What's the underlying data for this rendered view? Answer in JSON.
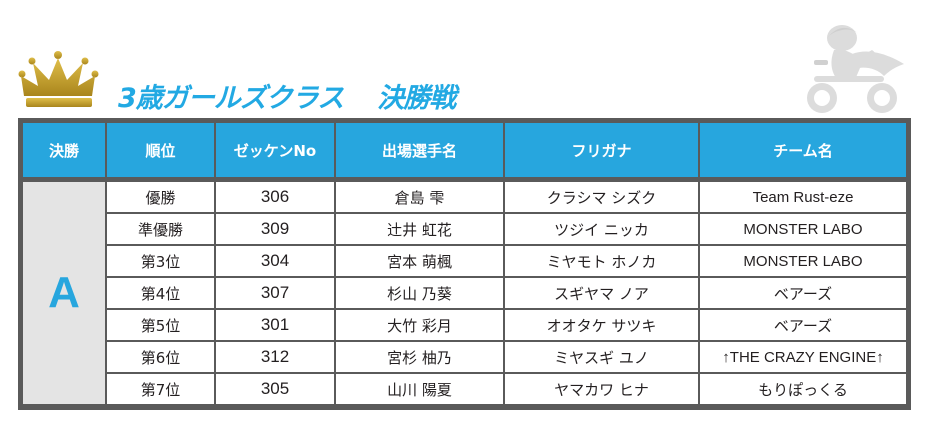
{
  "title": {
    "class_name": "3歳ガールズクラス",
    "round": "決勝戦"
  },
  "colors": {
    "accent": "#27a6de",
    "crown": "#c9a227",
    "frame": "#5a5a5a",
    "group_bg": "#e4e4e4"
  },
  "table": {
    "headers": [
      "決勝",
      "順位",
      "ゼッケンNo",
      "出場選手名",
      "フリガナ",
      "チーム名"
    ],
    "group": "A",
    "rows": [
      {
        "rank": "優勝",
        "bib": "306",
        "name": "倉島 雫",
        "kana": "クラシマ シズク",
        "team": "Team Rust-eze"
      },
      {
        "rank": "準優勝",
        "bib": "309",
        "name": "辻井 虹花",
        "kana": "ツジイ ニッカ",
        "team": "MONSTER LABO"
      },
      {
        "rank": "第3位",
        "bib": "304",
        "name": "宮本 萌楓",
        "kana": "ミヤモト ホノカ",
        "team": "MONSTER LABO"
      },
      {
        "rank": "第4位",
        "bib": "307",
        "name": "杉山 乃葵",
        "kana": "スギヤマ ノア",
        "team": "ベアーズ"
      },
      {
        "rank": "第5位",
        "bib": "301",
        "name": "大竹 彩月",
        "kana": "オオタケ サツキ",
        "team": "ベアーズ"
      },
      {
        "rank": "第6位",
        "bib": "312",
        "name": "宮杉 柚乃",
        "kana": "ミヤスギ ユノ",
        "team": "↑THE CRAZY ENGINE↑"
      },
      {
        "rank": "第7位",
        "bib": "305",
        "name": "山川 陽夏",
        "kana": "ヤマカワ ヒナ",
        "team": "もりぽっくる"
      }
    ]
  },
  "icons": {
    "crown": "crown-icon",
    "rider": "balance-bike-rider-silhouette"
  }
}
